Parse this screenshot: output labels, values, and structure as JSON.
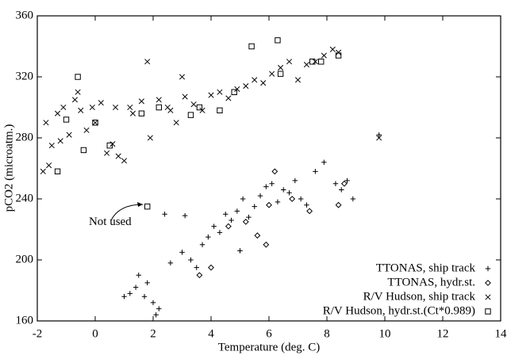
{
  "chart_data": {
    "type": "scatter",
    "xlabel": "Temperature (deg. C)",
    "ylabel": "pCO2 (microatm.)",
    "xlim": [
      -2,
      14
    ],
    "xticks": [
      -2,
      0,
      2,
      4,
      6,
      8,
      10,
      12,
      14
    ],
    "ylim": [
      160,
      360
    ],
    "yticks": [
      160,
      200,
      240,
      280,
      320,
      360
    ],
    "legend": "lower right",
    "color": "#000000",
    "annotations": [
      {
        "text": "Not used",
        "x": 1.8,
        "y": 235
      }
    ],
    "series": [
      {
        "name": "TTONAS, ship track",
        "marker": "plus",
        "x": [
          1.2,
          1.5,
          1.8,
          2.0,
          2.2,
          1.4,
          1.7,
          2.6,
          3.0,
          3.3,
          3.5,
          3.7,
          3.9,
          4.1,
          4.3,
          4.5,
          4.7,
          4.9,
          5.1,
          5.3,
          5.5,
          5.7,
          5.9,
          6.1,
          6.3,
          6.5,
          6.7,
          6.9,
          7.1,
          7.3,
          7.6,
          7.9,
          8.3,
          8.5,
          8.7,
          8.9,
          2.4,
          3.1,
          5.0,
          9.8,
          1.0,
          2.1
        ],
        "values": [
          178,
          190,
          185,
          172,
          168,
          182,
          176,
          198,
          205,
          200,
          195,
          210,
          215,
          222,
          218,
          230,
          226,
          232,
          240,
          228,
          235,
          242,
          248,
          250,
          238,
          246,
          244,
          252,
          240,
          236,
          258,
          264,
          250,
          246,
          252,
          240,
          230,
          229,
          206,
          282,
          176,
          164
        ]
      },
      {
        "name": "TTONAS, hydr.st.",
        "marker": "diamond",
        "x": [
          3.6,
          4.0,
          4.6,
          5.2,
          5.6,
          6.0,
          6.2,
          6.8,
          8.4,
          8.6,
          7.4,
          5.9
        ],
        "values": [
          190,
          195,
          222,
          225,
          216,
          236,
          258,
          240,
          236,
          250,
          232,
          210
        ]
      },
      {
        "name": "R/V Hudson, ship track",
        "marker": "cross",
        "x": [
          -1.8,
          -1.7,
          -1.5,
          -1.3,
          -1.1,
          -0.9,
          -0.7,
          -0.5,
          -0.3,
          -0.1,
          0.2,
          0.4,
          0.7,
          1.0,
          1.3,
          1.6,
          1.9,
          2.2,
          2.5,
          2.8,
          3.1,
          3.4,
          3.7,
          4.0,
          4.3,
          4.6,
          4.9,
          5.2,
          5.5,
          5.8,
          6.1,
          6.4,
          6.7,
          7.0,
          7.3,
          7.6,
          7.9,
          8.2,
          8.4,
          -1.6,
          -1.2,
          -0.6,
          0.0,
          0.6,
          1.2,
          1.8,
          2.6,
          3.0,
          0.8,
          9.8
        ],
        "values": [
          258,
          290,
          275,
          296,
          300,
          282,
          305,
          298,
          285,
          300,
          303,
          270,
          300,
          265,
          296,
          304,
          280,
          305,
          300,
          290,
          307,
          302,
          298,
          308,
          310,
          306,
          312,
          314,
          318,
          316,
          322,
          326,
          330,
          318,
          328,
          330,
          334,
          338,
          336,
          262,
          278,
          310,
          290,
          276,
          300,
          330,
          298,
          320,
          268,
          280
        ]
      },
      {
        "name": "R/V Hudson, hydr.st.(Ct*0.989)",
        "marker": "square",
        "x": [
          -0.6,
          -1.3,
          -1.0,
          0.0,
          0.5,
          1.8,
          1.6,
          2.2,
          3.3,
          3.6,
          4.3,
          4.8,
          5.4,
          6.3,
          6.4,
          7.5,
          7.8,
          8.4,
          -0.4
        ],
        "values": [
          320,
          258,
          292,
          290,
          275,
          235,
          296,
          300,
          295,
          300,
          298,
          310,
          340,
          344,
          322,
          330,
          330,
          334,
          272
        ]
      }
    ]
  }
}
